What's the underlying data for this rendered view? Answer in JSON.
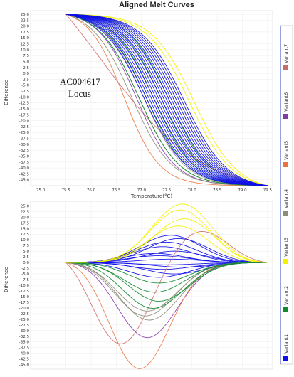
{
  "chart_data": [
    {
      "type": "line",
      "title": "Aligned Melt Curves",
      "annotation_line1": "AC004617",
      "annotation_line2": "Locus",
      "xlabel": "Temperature(°C)",
      "ylabel": "Difference",
      "xlim": [
        74.8,
        79.6
      ],
      "ylim": [
        -47.5,
        26.5
      ],
      "x_ticks": [
        "75.0",
        "75.5",
        "76.0",
        "76.5",
        "77.0",
        "77.5",
        "78.0",
        "78.5",
        "79.0",
        "79.5"
      ],
      "y_ticks": [
        "25.0",
        "22.5",
        "20.0",
        "17.5",
        "15.0",
        "12.5",
        "10.0",
        "7.5",
        "5.0",
        "2.5",
        "0.0",
        "-2.5",
        "-5.0",
        "-7.5",
        "-10.0",
        "-12.5",
        "-15.0",
        "-17.5",
        "-20.0",
        "-22.5",
        "-25.0",
        "-27.5",
        "-30.0",
        "-32.5",
        "-35.0",
        "-37.5",
        "-40.0",
        "-42.5",
        "-45.0"
      ],
      "grid": true,
      "curve_model": "normalized fluorescence from 25.0 at 75.5 °C falling to -47.5 at 79.5 °C; each curve is a sigmoid with midpoint (°C) and width (°C)",
      "series": [
        {
          "name": "variant1",
          "color": "#1010e8",
          "midpoints": [
            77.05,
            77.1,
            77.15,
            77.2,
            77.25,
            77.3,
            77.35,
            77.4,
            77.45,
            77.5,
            77.55,
            77.6,
            77.65,
            77.7,
            77.75,
            77.8,
            77.85
          ],
          "width": 0.42
        },
        {
          "name": "variant2",
          "color": "#118a2e",
          "midpoints": [
            76.95,
            77.1,
            77.25,
            77.4,
            77.55
          ],
          "width": 0.4
        },
        {
          "name": "variant3",
          "color": "#f2f200",
          "midpoints": [
            77.7,
            77.8,
            77.95,
            78.05
          ],
          "width": 0.42
        },
        {
          "name": "variant4",
          "color": "#8c8c7a",
          "midpoints": [
            76.8,
            76.95,
            77.05
          ],
          "width": 0.4
        },
        {
          "name": "variant5",
          "color": "#ee7a45",
          "midpoints": [
            76.65
          ],
          "width": 0.35
        },
        {
          "name": "variant6",
          "color": "#8a3fb5",
          "midpoints": [
            76.9
          ],
          "width": 0.38
        },
        {
          "name": "variant7",
          "color": "#d47070",
          "midpoints": [
            76.2
          ],
          "width": 1.0
        }
      ]
    },
    {
      "type": "line",
      "title": "",
      "xlabel": "",
      "ylabel": "Difference",
      "xlim": [
        74.8,
        79.6
      ],
      "ylim": [
        -47.0,
        27.0
      ],
      "y_ticks": [
        "25.0",
        "22.5",
        "20.0",
        "17.5",
        "15.0",
        "12.5",
        "10.0",
        "7.5",
        "5.0",
        "2.5",
        "0.0",
        "-2.5",
        "-5.0",
        "-7.5",
        "-10.0",
        "-12.5",
        "-15.0",
        "-17.5",
        "-20.0",
        "-22.5",
        "-25.0",
        "-27.5",
        "-30.0",
        "-32.5",
        "-35.0",
        "-37.5",
        "-40.0",
        "-42.5",
        "-45.0"
      ],
      "grid": true,
      "curve_model": "difference curves relative to variant1 reference: each curve starts at 0.0 at 75.5 °C, reaches a peak value near a peak temperature and returns to 0.0 at 79.5 °C",
      "series": [
        {
          "name": "variant1",
          "color": "#1010e8",
          "peaks": [
            [
              77.6,
              12
            ],
            [
              77.5,
              9
            ],
            [
              77.4,
              7
            ],
            [
              77.7,
              5
            ],
            [
              77.3,
              3
            ],
            [
              77.6,
              1.5
            ],
            [
              77.5,
              -1
            ],
            [
              77.4,
              -3
            ],
            [
              77.7,
              -5
            ],
            [
              77.3,
              -6.5
            ],
            [
              77.8,
              10.5
            ],
            [
              77.2,
              4
            ],
            [
              77.9,
              -2
            ]
          ]
        },
        {
          "name": "variant2",
          "color": "#118a2e",
          "peaks": [
            [
              77.3,
              -9
            ],
            [
              77.2,
              -13
            ],
            [
              77.3,
              -17
            ],
            [
              77.15,
              -20
            ]
          ]
        },
        {
          "name": "variant3",
          "color": "#f2f200",
          "peaks": [
            [
              77.9,
              25.5
            ],
            [
              77.85,
              23
            ],
            [
              77.95,
              19
            ],
            [
              77.8,
              16
            ]
          ]
        },
        {
          "name": "variant4",
          "color": "#8c8c7a",
          "peaks": [
            [
              77.0,
              -21
            ],
            [
              76.95,
              -23
            ],
            [
              77.05,
              -25
            ]
          ]
        },
        {
          "name": "variant5",
          "color": "#ee7a45",
          "peaks": [
            [
              76.8,
              -45
            ]
          ]
        },
        {
          "name": "variant6",
          "color": "#8a3fb5",
          "peaks": [
            [
              77.0,
              -32.5
            ]
          ]
        },
        {
          "name": "variant7",
          "color": "#d47070",
          "peaks": [
            [
              76.3,
              -31
            ],
            [
              78.3,
              14
            ]
          ]
        }
      ]
    }
  ],
  "legend": {
    "position": "right",
    "items": [
      {
        "label": "Variant7",
        "color": "#c07068"
      },
      {
        "label": "Variant6",
        "color": "#7a3fa0"
      },
      {
        "label": "Variant5",
        "color": "#e8743c"
      },
      {
        "label": "Variant4",
        "color": "#8c8c7a"
      },
      {
        "label": "Variant3",
        "color": "#f2f200"
      },
      {
        "label": "Variant2",
        "color": "#118a2e"
      },
      {
        "label": "Variant1",
        "color": "#1010e8"
      }
    ]
  }
}
